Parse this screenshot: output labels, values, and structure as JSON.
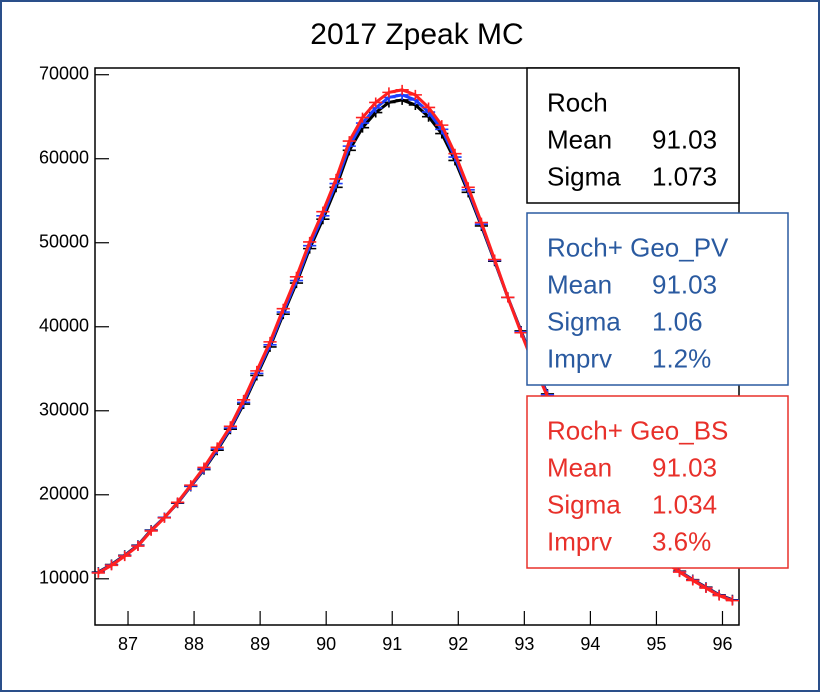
{
  "chart_data": {
    "type": "line",
    "title": "2017 Zpeak MC",
    "x": [
      86.55,
      86.75,
      86.95,
      87.15,
      87.35,
      87.55,
      87.75,
      87.95,
      88.15,
      88.35,
      88.55,
      88.75,
      88.95,
      89.15,
      89.35,
      89.55,
      89.75,
      89.95,
      90.15,
      90.35,
      90.55,
      90.75,
      90.95,
      91.15,
      91.35,
      91.55,
      91.75,
      91.95,
      92.15,
      92.35,
      92.55,
      92.75,
      92.95,
      93.15,
      93.35,
      93.55,
      93.75,
      93.95,
      94.15,
      94.35,
      94.55,
      94.75,
      94.95,
      95.15,
      95.35,
      95.55,
      95.75,
      95.95,
      96.15
    ],
    "series": [
      {
        "name": "Roch",
        "color": "#000000",
        "values": [
          10800,
          11700,
          12800,
          14000,
          15800,
          17300,
          19000,
          21000,
          23000,
          25300,
          27800,
          30800,
          34200,
          37600,
          41500,
          45200,
          49300,
          52800,
          56600,
          61000,
          63700,
          65500,
          66700,
          67000,
          66400,
          65000,
          63000,
          59800,
          56000,
          52000,
          47800,
          43500,
          39500,
          35600,
          32000,
          28600,
          25600,
          22900,
          20400,
          18300,
          16400,
          14800,
          13400,
          12200,
          10900,
          9900,
          9000,
          8100,
          7500
        ]
      },
      {
        "name": "Roch+ Geo_PV",
        "color": "#1f3fff",
        "values": [
          10750,
          11650,
          12750,
          13950,
          15750,
          17300,
          19050,
          21050,
          23100,
          25450,
          27950,
          31000,
          34450,
          37850,
          41750,
          45500,
          49650,
          53200,
          57050,
          61500,
          64250,
          66050,
          67300,
          67600,
          67000,
          65550,
          63500,
          60200,
          56300,
          52200,
          47900,
          43500,
          39400,
          35500,
          31900,
          28500,
          25500,
          22800,
          20300,
          18200,
          16300,
          14700,
          13300,
          12100,
          10850,
          9850,
          8950,
          8050,
          7450
        ]
      },
      {
        "name": "Roch+ Geo_BS",
        "color": "#ff2020",
        "values": [
          10700,
          11600,
          12700,
          13900,
          15700,
          17250,
          19100,
          21150,
          23250,
          25650,
          28150,
          31300,
          34750,
          38200,
          42150,
          45950,
          50100,
          53700,
          57600,
          62100,
          64900,
          66700,
          67900,
          68200,
          67600,
          66100,
          64000,
          60600,
          56600,
          52400,
          48000,
          43500,
          39300,
          35300,
          31700,
          28300,
          25300,
          22600,
          20100,
          18000,
          16100,
          14500,
          13100,
          11900,
          10800,
          9800,
          8900,
          8000,
          7400
        ]
      }
    ],
    "xlim": [
      86.5,
      96.25
    ],
    "xticks": [
      87,
      88,
      89,
      90,
      91,
      92,
      93,
      94,
      95,
      96
    ],
    "ylim": [
      4500,
      70800
    ],
    "yticks": [
      10000,
      20000,
      30000,
      40000,
      50000,
      60000,
      70000
    ],
    "stat_boxes": [
      {
        "title": "Roch",
        "color": "#000000",
        "rows": [
          {
            "label": "Mean",
            "value": 91.03
          },
          {
            "label": "Sigma",
            "value": 1.073
          }
        ]
      },
      {
        "title": "Roch+ Geo_PV",
        "color": "#2a5aa0",
        "rows": [
          {
            "label": "Mean",
            "value": 91.03
          },
          {
            "label": "Sigma",
            "value": 1.06
          },
          {
            "label": "Imprv",
            "value": 1.2,
            "value_label": "1.2%"
          }
        ]
      },
      {
        "title": "Roch+ Geo_BS",
        "color": "#e8302a",
        "rows": [
          {
            "label": "Mean",
            "value": 91.03
          },
          {
            "label": "Sigma",
            "value": 1.034
          },
          {
            "label": "Imprv",
            "value": 3.6,
            "value_label": "3.6%"
          }
        ]
      }
    ]
  }
}
